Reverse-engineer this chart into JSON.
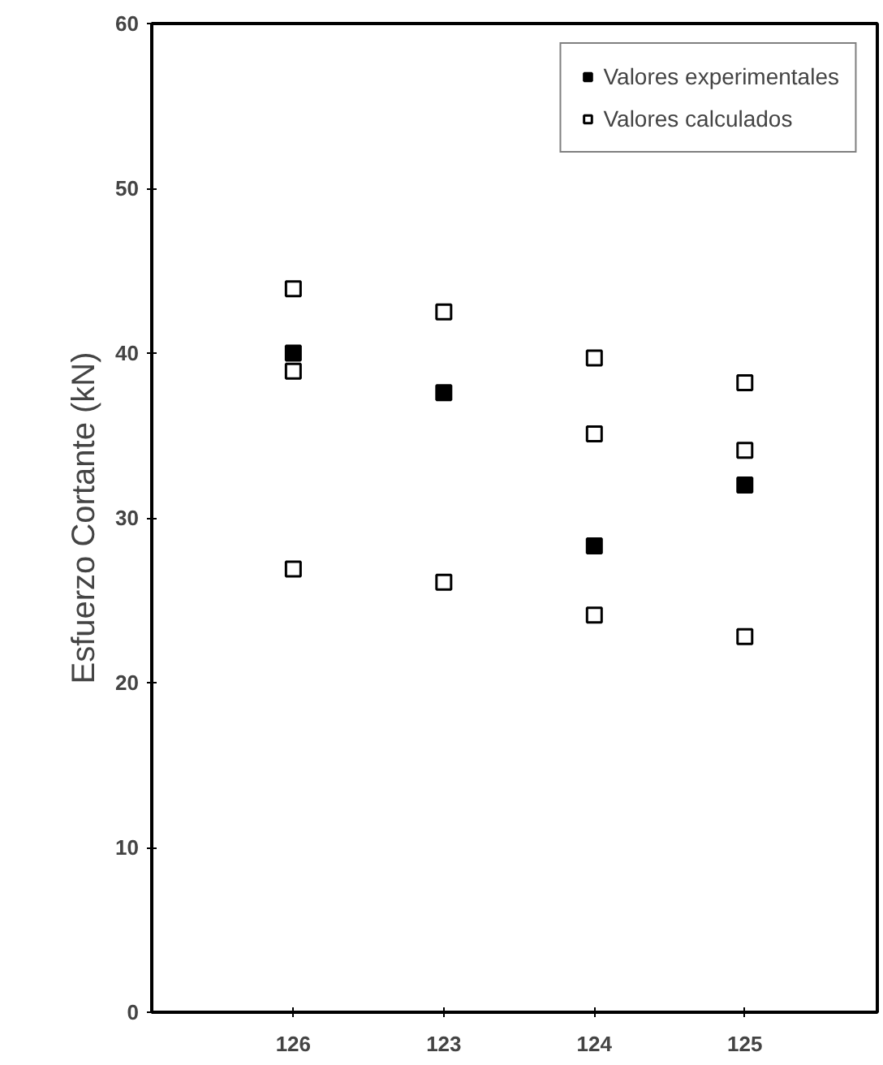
{
  "chart_data": {
    "type": "scatter",
    "ylabel": "Esfuerzo Cortante (kN)",
    "categories": [
      "126",
      "123",
      "124",
      "125"
    ],
    "ylim": [
      0,
      60
    ],
    "yticks": [
      0,
      10,
      20,
      30,
      40,
      50,
      60
    ],
    "grid": false,
    "legend": "top right",
    "marker": "square",
    "series": [
      {
        "name": "Valores experimentales",
        "color": "#000000",
        "values": [
          40.0,
          37.6,
          28.3,
          32.0
        ]
      },
      {
        "name": "Valores calculados",
        "color": "#ffffff",
        "x": [
          "126",
          "126",
          "126",
          "123",
          "123",
          "124",
          "124",
          "124",
          "125",
          "125",
          "125"
        ],
        "values": [
          43.9,
          38.9,
          26.9,
          42.5,
          26.1,
          39.7,
          35.1,
          24.1,
          38.2,
          34.1,
          22.8
        ]
      }
    ]
  }
}
